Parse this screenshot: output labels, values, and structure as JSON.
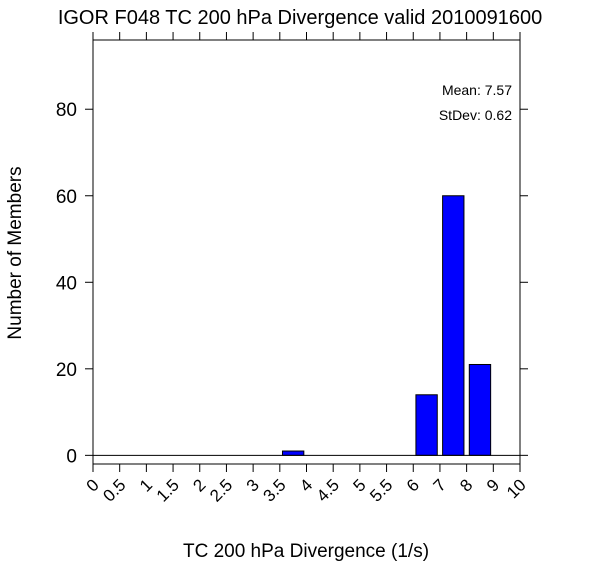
{
  "chart_data": {
    "type": "bar",
    "title": "IGOR F048 TC 200 hPa Divergence valid 2010091600",
    "xlabel": "TC 200 hPa Divergence (1/s)",
    "ylabel": "Number of Members",
    "x_tick_labels": [
      "0",
      "0.5",
      "1",
      "1.5",
      "2",
      "2.5",
      "3",
      "3.5",
      "4",
      "4.5",
      "5",
      "5.5",
      "6",
      "7",
      "8",
      "9",
      "10"
    ],
    "y_ticks": [
      0,
      20,
      40,
      60,
      80
    ],
    "ylim": [
      -2,
      96
    ],
    "bars": [
      {
        "bin": "3.5-4",
        "value": 1
      },
      {
        "bin": "6-7",
        "value": 14
      },
      {
        "bin": "7-8",
        "value": 60
      },
      {
        "bin": "8-9",
        "value": 21
      }
    ],
    "bar_color": "#0000ff",
    "grid": false,
    "stats": {
      "mean_text": "Mean: 7.57",
      "stdev_text": "StDev: 0.62"
    }
  }
}
